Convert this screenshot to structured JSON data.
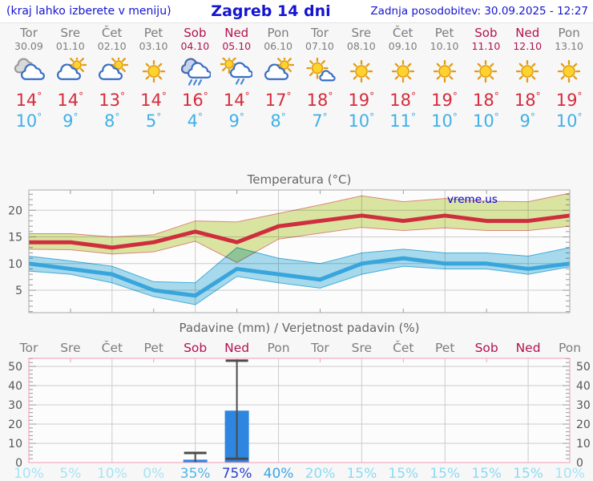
{
  "header": {
    "left": "(kraj lahko izberete v meniju)",
    "title": "Zagreb 14 dni",
    "updated": "Zadnja posodobitev: 30.09.2025 - 12:27"
  },
  "watermark": "vreme.us",
  "units": {
    "degree": "°",
    "percent": "%"
  },
  "days": [
    {
      "name": "Tor",
      "date": "30.09",
      "weekend": false,
      "icon": "cloudy",
      "high": 14,
      "low": 10
    },
    {
      "name": "Sre",
      "date": "01.10",
      "weekend": false,
      "icon": "sun-cloud",
      "high": 14,
      "low": 9
    },
    {
      "name": "Čet",
      "date": "02.10",
      "weekend": false,
      "icon": "sun-cloud",
      "high": 13,
      "low": 8
    },
    {
      "name": "Pet",
      "date": "03.10",
      "weekend": false,
      "icon": "sunny",
      "high": 14,
      "low": 5
    },
    {
      "name": "Sob",
      "date": "04.10",
      "weekend": true,
      "icon": "rain",
      "high": 16,
      "low": 4
    },
    {
      "name": "Ned",
      "date": "05.10",
      "weekend": true,
      "icon": "sun-cloud-rain",
      "high": 14,
      "low": 9
    },
    {
      "name": "Pon",
      "date": "06.10",
      "weekend": false,
      "icon": "sun-cloud",
      "high": 17,
      "low": 8
    },
    {
      "name": "Tor",
      "date": "07.10",
      "weekend": false,
      "icon": "sun-small-cloud",
      "high": 18,
      "low": 7
    },
    {
      "name": "Sre",
      "date": "08.10",
      "weekend": false,
      "icon": "sunny",
      "high": 19,
      "low": 10
    },
    {
      "name": "Čet",
      "date": "09.10",
      "weekend": false,
      "icon": "sunny",
      "high": 18,
      "low": 11
    },
    {
      "name": "Pet",
      "date": "10.10",
      "weekend": false,
      "icon": "sunny",
      "high": 19,
      "low": 10
    },
    {
      "name": "Sob",
      "date": "11.10",
      "weekend": true,
      "icon": "sunny",
      "high": 18,
      "low": 10
    },
    {
      "name": "Ned",
      "date": "12.10",
      "weekend": true,
      "icon": "sunny",
      "high": 18,
      "low": 9
    },
    {
      "name": "Pon",
      "date": "13.10",
      "weekend": false,
      "icon": "sunny",
      "high": 19,
      "low": 10
    }
  ],
  "chart_data": [
    {
      "type": "line",
      "title": "Temperatura (°C)",
      "x_categories": [
        "Tor 30.09",
        "Sre 01.10",
        "Čet 02.10",
        "Pet 03.10",
        "Sob 04.10",
        "Ned 05.10",
        "Pon 06.10",
        "Tor 07.10",
        "Sre 08.10",
        "Čet 09.10",
        "Pet 10.10",
        "Sob 11.10",
        "Ned 12.10",
        "Pon 13.10"
      ],
      "ylim": [
        0.8,
        23.8
      ],
      "yticks": [
        5,
        10,
        15,
        20
      ],
      "grid": true,
      "series": [
        {
          "name": "max",
          "values": [
            14,
            14,
            13,
            14,
            16,
            14,
            17,
            18,
            19,
            18,
            19,
            18,
            18,
            19
          ]
        },
        {
          "name": "max_range_upper",
          "values": [
            15.6,
            15.6,
            15.0,
            15.4,
            18.0,
            17.8,
            19.4,
            21.0,
            22.7,
            21.6,
            22.2,
            21.7,
            21.6,
            23.2
          ]
        },
        {
          "name": "max_range_lower",
          "values": [
            12.7,
            12.6,
            11.8,
            12.2,
            14.2,
            10.2,
            14.6,
            15.7,
            16.8,
            16.2,
            16.7,
            16.2,
            16.2,
            17.0
          ]
        },
        {
          "name": "min",
          "values": [
            10,
            9,
            8,
            5,
            4,
            9,
            8,
            7,
            10,
            11,
            10,
            10,
            9,
            10
          ]
        },
        {
          "name": "min_range_upper",
          "values": [
            11.4,
            10.5,
            9.5,
            6.6,
            6.4,
            13.0,
            11.0,
            10.0,
            12.0,
            12.7,
            12.0,
            12.0,
            11.4,
            13.0
          ]
        },
        {
          "name": "min_range_lower",
          "values": [
            8.6,
            8.0,
            6.4,
            3.8,
            2.3,
            7.6,
            6.4,
            5.4,
            8.0,
            9.5,
            9.0,
            9.0,
            8.0,
            9.4
          ]
        }
      ]
    },
    {
      "type": "bar",
      "title": "Padavine (mm) / Verjetnost padavin (%)",
      "categories": [
        "Tor",
        "Sre",
        "Čet",
        "Pet",
        "Sob",
        "Ned",
        "Pon",
        "Tor",
        "Sre",
        "Čet",
        "Pet",
        "Sob",
        "Ned",
        "Pon"
      ],
      "ylim": [
        0,
        54.2
      ],
      "yticks": [
        0,
        10,
        20,
        30,
        40,
        50
      ],
      "grid": true,
      "precip_mm": [
        0,
        0,
        0,
        0,
        1.5,
        27,
        0,
        0,
        0,
        0,
        0,
        0,
        0,
        0
      ],
      "whisker_low": [
        null,
        null,
        null,
        null,
        0,
        2,
        null,
        null,
        null,
        null,
        null,
        null,
        null,
        null
      ],
      "whisker_high": [
        null,
        null,
        null,
        null,
        5,
        53,
        null,
        null,
        null,
        null,
        null,
        null,
        null,
        null
      ],
      "probability_pct": [
        10,
        5,
        10,
        0,
        35,
        75,
        40,
        20,
        15,
        15,
        15,
        15,
        15,
        10
      ]
    }
  ],
  "colors": {
    "header_blue": "#1414d2",
    "day_gray": "#7d7d7d",
    "weekend": "#b3134f",
    "high": "#d62b3c",
    "low": "#3fb0e8",
    "title_gray": "#666666",
    "axis_text": "#555555",
    "grid": "#cccccc",
    "tick": "#999999",
    "temp_border": "#aaaaaa",
    "precip_border": "#ef9db4",
    "max_line": "#cf2e3e",
    "max_band": "#dde7a3",
    "max_band_edge": "#e08878",
    "min_line": "#38a5dc",
    "min_band": "#a8dcee",
    "min_band_edge": "#45aede",
    "bar": "#2e86e0",
    "whisker": "#4a4a4a",
    "watermark": "#0000cc",
    "plot_bg": "#fcfcfc"
  },
  "prob_color_scale": [
    {
      "max": 12,
      "color": "#a5e4f6"
    },
    {
      "max": 29,
      "color": "#8bdaf2"
    },
    {
      "max": 37,
      "color": "#4fb4ea"
    },
    {
      "max": 55,
      "color": "#3ca4e6"
    },
    {
      "max": 100,
      "color": "#2b3fd0"
    }
  ]
}
